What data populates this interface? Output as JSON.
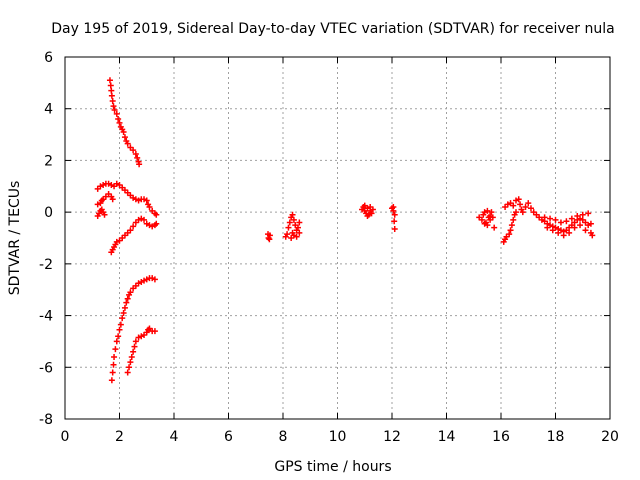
{
  "chart_data": {
    "type": "scatter",
    "title": "Day 195 of 2019, Sidereal Day-to-day VTEC variation (SDTVAR) for receiver nula",
    "xlabel": "GPS time / hours",
    "ylabel": "SDTVAR / TECUs",
    "xlim": [
      0,
      20
    ],
    "ylim": [
      -8,
      6
    ],
    "x_ticks": [
      0,
      2,
      4,
      6,
      8,
      10,
      12,
      14,
      16,
      18,
      20
    ],
    "y_ticks": [
      -8,
      -6,
      -4,
      -2,
      0,
      2,
      4,
      6
    ],
    "grid": true,
    "marker": "+",
    "marker_color": "#ff0000",
    "series": [
      {
        "name": "SDTVAR",
        "points": [
          [
            1.65,
            5.1
          ],
          [
            1.68,
            4.9
          ],
          [
            1.7,
            4.7
          ],
          [
            1.72,
            4.5
          ],
          [
            1.75,
            4.3
          ],
          [
            1.78,
            4.1
          ],
          [
            1.82,
            3.95
          ],
          [
            1.9,
            3.8
          ],
          [
            1.95,
            3.6
          ],
          [
            2.0,
            3.45
          ],
          [
            2.05,
            3.3
          ],
          [
            2.1,
            3.2
          ],
          [
            2.15,
            3.1
          ],
          [
            2.2,
            2.9
          ],
          [
            2.25,
            2.75
          ],
          [
            2.3,
            2.65
          ],
          [
            2.4,
            2.5
          ],
          [
            2.5,
            2.4
          ],
          [
            2.6,
            2.25
          ],
          [
            2.65,
            2.1
          ],
          [
            2.7,
            1.95
          ],
          [
            2.72,
            1.85
          ],
          [
            1.2,
            0.9
          ],
          [
            1.3,
            1.0
          ],
          [
            1.4,
            1.05
          ],
          [
            1.5,
            1.1
          ],
          [
            1.6,
            1.1
          ],
          [
            1.7,
            1.05
          ],
          [
            1.8,
            1.0
          ],
          [
            1.9,
            1.1
          ],
          [
            2.0,
            1.05
          ],
          [
            2.1,
            0.95
          ],
          [
            2.2,
            0.85
          ],
          [
            2.3,
            0.75
          ],
          [
            2.4,
            0.65
          ],
          [
            2.5,
            0.55
          ],
          [
            2.6,
            0.5
          ],
          [
            2.7,
            0.45
          ],
          [
            2.8,
            0.5
          ],
          [
            2.9,
            0.5
          ],
          [
            3.0,
            0.45
          ],
          [
            3.05,
            0.3
          ],
          [
            3.1,
            0.2
          ],
          [
            3.2,
            0.05
          ],
          [
            3.3,
            -0.05
          ],
          [
            3.35,
            -0.1
          ],
          [
            1.2,
            0.3
          ],
          [
            1.3,
            0.35
          ],
          [
            1.35,
            0.45
          ],
          [
            1.4,
            0.5
          ],
          [
            1.5,
            0.6
          ],
          [
            1.6,
            0.7
          ],
          [
            1.7,
            0.6
          ],
          [
            1.75,
            0.5
          ],
          [
            1.2,
            -0.15
          ],
          [
            1.25,
            -0.05
          ],
          [
            1.3,
            0.05
          ],
          [
            1.35,
            0.1
          ],
          [
            1.4,
            0.0
          ],
          [
            1.45,
            -0.1
          ],
          [
            1.7,
            -1.55
          ],
          [
            1.75,
            -1.45
          ],
          [
            1.8,
            -1.35
          ],
          [
            1.85,
            -1.25
          ],
          [
            1.9,
            -1.15
          ],
          [
            2.0,
            -1.1
          ],
          [
            2.1,
            -1.0
          ],
          [
            2.2,
            -0.9
          ],
          [
            2.3,
            -0.8
          ],
          [
            2.4,
            -0.7
          ],
          [
            2.5,
            -0.55
          ],
          [
            2.6,
            -0.4
          ],
          [
            2.7,
            -0.3
          ],
          [
            2.8,
            -0.25
          ],
          [
            2.9,
            -0.3
          ],
          [
            3.0,
            -0.45
          ],
          [
            3.1,
            -0.5
          ],
          [
            3.2,
            -0.55
          ],
          [
            3.3,
            -0.5
          ],
          [
            3.35,
            -0.45
          ],
          [
            1.72,
            -6.5
          ],
          [
            1.75,
            -6.2
          ],
          [
            1.78,
            -5.9
          ],
          [
            1.8,
            -5.6
          ],
          [
            1.85,
            -5.3
          ],
          [
            1.9,
            -5.0
          ],
          [
            1.95,
            -4.8
          ],
          [
            2.0,
            -4.55
          ],
          [
            2.05,
            -4.35
          ],
          [
            2.1,
            -4.1
          ],
          [
            2.15,
            -3.9
          ],
          [
            2.2,
            -3.7
          ],
          [
            2.25,
            -3.5
          ],
          [
            2.3,
            -3.35
          ],
          [
            2.35,
            -3.2
          ],
          [
            2.4,
            -3.1
          ],
          [
            2.5,
            -2.95
          ],
          [
            2.6,
            -2.85
          ],
          [
            2.7,
            -2.75
          ],
          [
            2.8,
            -2.7
          ],
          [
            2.9,
            -2.65
          ],
          [
            3.0,
            -2.6
          ],
          [
            3.1,
            -2.55
          ],
          [
            3.2,
            -2.55
          ],
          [
            3.3,
            -2.6
          ],
          [
            2.3,
            -6.2
          ],
          [
            2.35,
            -6.0
          ],
          [
            2.4,
            -5.8
          ],
          [
            2.45,
            -5.6
          ],
          [
            2.5,
            -5.4
          ],
          [
            2.55,
            -5.2
          ],
          [
            2.6,
            -5.0
          ],
          [
            2.7,
            -4.85
          ],
          [
            2.8,
            -4.8
          ],
          [
            2.9,
            -4.75
          ],
          [
            3.0,
            -4.65
          ],
          [
            3.05,
            -4.55
          ],
          [
            3.1,
            -4.5
          ],
          [
            3.2,
            -4.6
          ],
          [
            3.3,
            -4.6
          ],
          [
            7.45,
            -0.85
          ],
          [
            7.47,
            -1.0
          ],
          [
            7.5,
            -1.05
          ],
          [
            7.52,
            -0.9
          ],
          [
            8.1,
            -0.95
          ],
          [
            8.15,
            -0.85
          ],
          [
            8.2,
            -0.6
          ],
          [
            8.25,
            -0.4
          ],
          [
            8.3,
            -0.2
          ],
          [
            8.35,
            -0.1
          ],
          [
            8.4,
            -0.3
          ],
          [
            8.45,
            -0.5
          ],
          [
            8.5,
            -0.7
          ],
          [
            8.55,
            -0.6
          ],
          [
            8.6,
            -0.8
          ],
          [
            8.3,
            -1.0
          ],
          [
            8.4,
            -0.9
          ],
          [
            8.5,
            -0.95
          ],
          [
            8.6,
            -0.4
          ],
          [
            8.35,
            -0.8
          ],
          [
            10.9,
            0.1
          ],
          [
            10.95,
            0.2
          ],
          [
            11.0,
            0.05
          ],
          [
            11.05,
            -0.05
          ],
          [
            11.1,
            0.15
          ],
          [
            11.15,
            -0.1
          ],
          [
            11.2,
            0.05
          ],
          [
            11.25,
            -0.05
          ],
          [
            11.3,
            0.1
          ],
          [
            11.0,
            0.25
          ],
          [
            11.1,
            -0.15
          ],
          [
            11.2,
            0.2
          ],
          [
            12.0,
            0.15
          ],
          [
            12.05,
            0.05
          ],
          [
            12.1,
            -0.1
          ],
          [
            12.08,
            -0.35
          ],
          [
            12.1,
            -0.65
          ],
          [
            12.05,
            0.2
          ],
          [
            15.2,
            -0.2
          ],
          [
            15.3,
            -0.3
          ],
          [
            15.35,
            -0.1
          ],
          [
            15.4,
            0.0
          ],
          [
            15.45,
            -0.4
          ],
          [
            15.5,
            -0.5
          ],
          [
            15.55,
            -0.2
          ],
          [
            15.6,
            -0.3
          ],
          [
            15.65,
            0.0
          ],
          [
            15.7,
            -0.2
          ],
          [
            15.75,
            -0.6
          ],
          [
            15.5,
            0.05
          ],
          [
            15.4,
            -0.45
          ],
          [
            15.6,
            -0.15
          ],
          [
            16.1,
            -1.15
          ],
          [
            16.15,
            -1.05
          ],
          [
            16.2,
            -0.95
          ],
          [
            16.3,
            -0.85
          ],
          [
            16.35,
            -0.7
          ],
          [
            16.4,
            -0.5
          ],
          [
            16.45,
            -0.3
          ],
          [
            16.5,
            -0.1
          ],
          [
            16.55,
            0.0
          ],
          [
            16.15,
            0.2
          ],
          [
            16.25,
            0.3
          ],
          [
            16.35,
            0.35
          ],
          [
            16.45,
            0.25
          ],
          [
            16.55,
            0.45
          ],
          [
            16.65,
            0.5
          ],
          [
            16.7,
            0.3
          ],
          [
            16.75,
            0.1
          ],
          [
            16.8,
            0.0
          ],
          [
            16.9,
            0.2
          ],
          [
            17.0,
            0.35
          ],
          [
            17.1,
            0.15
          ],
          [
            17.2,
            0.0
          ],
          [
            17.3,
            -0.1
          ],
          [
            17.4,
            -0.2
          ],
          [
            17.5,
            -0.3
          ],
          [
            17.6,
            -0.35
          ],
          [
            17.7,
            -0.45
          ],
          [
            17.8,
            -0.5
          ],
          [
            17.9,
            -0.55
          ],
          [
            18.0,
            -0.6
          ],
          [
            18.1,
            -0.65
          ],
          [
            18.2,
            -0.7
          ],
          [
            18.3,
            -0.75
          ],
          [
            18.4,
            -0.7
          ],
          [
            18.5,
            -0.6
          ],
          [
            18.6,
            -0.5
          ],
          [
            18.7,
            -0.4
          ],
          [
            18.8,
            -0.3
          ],
          [
            18.9,
            -0.25
          ],
          [
            19.0,
            -0.3
          ],
          [
            19.1,
            -0.4
          ],
          [
            19.2,
            -0.5
          ],
          [
            19.3,
            -0.8
          ],
          [
            19.35,
            -0.9
          ],
          [
            17.6,
            -0.2
          ],
          [
            17.8,
            -0.25
          ],
          [
            18.0,
            -0.3
          ],
          [
            18.2,
            -0.4
          ],
          [
            18.4,
            -0.35
          ],
          [
            18.6,
            -0.25
          ],
          [
            18.8,
            -0.15
          ],
          [
            19.0,
            -0.1
          ],
          [
            19.2,
            -0.05
          ],
          [
            17.7,
            -0.6
          ],
          [
            17.9,
            -0.7
          ],
          [
            18.1,
            -0.8
          ],
          [
            18.3,
            -0.9
          ],
          [
            18.5,
            -0.8
          ],
          [
            18.7,
            -0.6
          ],
          [
            18.9,
            -0.5
          ],
          [
            19.1,
            -0.7
          ],
          [
            19.3,
            -0.45
          ]
        ]
      }
    ]
  }
}
